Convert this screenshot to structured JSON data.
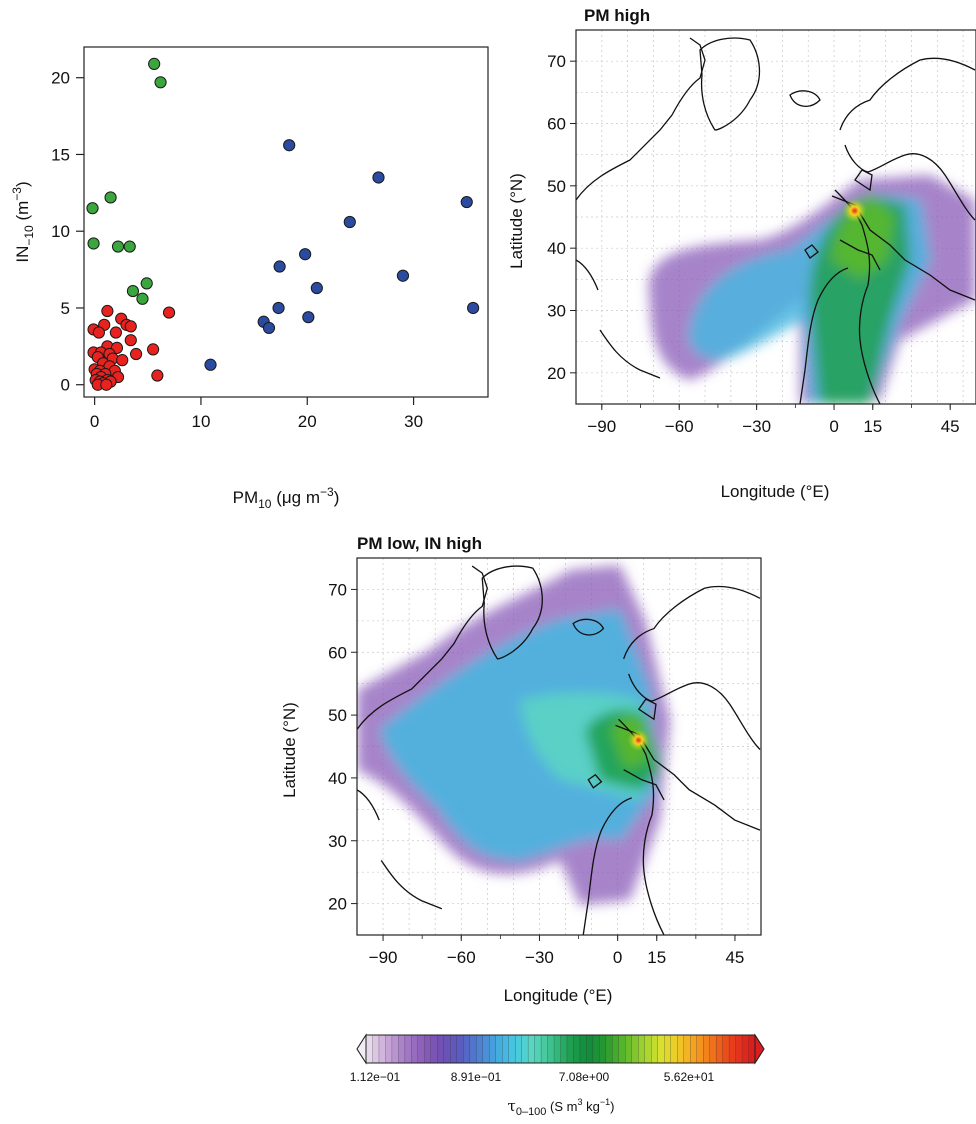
{
  "chart_data": [
    {
      "type": "scatter",
      "xlabel": "PM",
      "xlabel_sub": "10",
      "xlabel_unit": "(μg m",
      "xlabel_unit_sup": "−3",
      "xlabel_unit_end": ")",
      "ylabel": "IN",
      "ylabel_sub": "−10",
      "ylabel_unit": "(m",
      "ylabel_unit_sup": "−3",
      "ylabel_unit_end": ")",
      "xlim": [
        -1,
        37
      ],
      "ylim": [
        -0.8,
        22
      ],
      "xticks": [
        0,
        10,
        20,
        30
      ],
      "yticks": [
        0,
        5,
        10,
        15,
        20
      ],
      "colors": {
        "red": "#e8231f",
        "green": "#3aa63d",
        "blue": "#2a4ba0"
      },
      "series": [
        {
          "color": "#3aa63d",
          "points": [
            [
              5.6,
              20.9
            ],
            [
              6.2,
              19.7
            ],
            [
              -0.2,
              11.5
            ],
            [
              1.5,
              12.2
            ],
            [
              -0.1,
              9.2
            ],
            [
              2.2,
              9.0
            ],
            [
              3.3,
              9.0
            ],
            [
              4.9,
              6.6
            ],
            [
              3.6,
              6.1
            ],
            [
              4.5,
              5.6
            ]
          ]
        },
        {
          "color": "#2a4ba0",
          "points": [
            [
              18.3,
              15.6
            ],
            [
              26.7,
              13.5
            ],
            [
              35.0,
              11.9
            ],
            [
              24.0,
              10.6
            ],
            [
              19.8,
              8.5
            ],
            [
              17.4,
              7.7
            ],
            [
              29.0,
              7.1
            ],
            [
              20.9,
              6.3
            ],
            [
              17.3,
              5.0
            ],
            [
              35.6,
              5.0
            ],
            [
              20.1,
              4.4
            ],
            [
              15.9,
              4.1
            ],
            [
              16.4,
              3.7
            ],
            [
              10.9,
              1.3
            ]
          ]
        },
        {
          "color": "#e8231f",
          "points": [
            [
              1.2,
              4.8
            ],
            [
              7.0,
              4.7
            ],
            [
              2.5,
              4.3
            ],
            [
              0.9,
              3.9
            ],
            [
              3.0,
              3.9
            ],
            [
              3.4,
              3.8
            ],
            [
              -0.1,
              3.6
            ],
            [
              0.4,
              3.4
            ],
            [
              2.0,
              3.4
            ],
            [
              3.4,
              2.9
            ],
            [
              1.2,
              2.5
            ],
            [
              2.1,
              2.4
            ],
            [
              5.5,
              2.3
            ],
            [
              -0.1,
              2.1
            ],
            [
              0.6,
              2.1
            ],
            [
              1.4,
              2.0
            ],
            [
              3.9,
              2.0
            ],
            [
              0.3,
              1.8
            ],
            [
              1.7,
              1.7
            ],
            [
              2.6,
              1.6
            ],
            [
              0.8,
              1.4
            ],
            [
              1.4,
              1.2
            ],
            [
              0.0,
              1.0
            ],
            [
              0.5,
              0.9
            ],
            [
              1.9,
              0.9
            ],
            [
              0.2,
              0.7
            ],
            [
              1.0,
              0.7
            ],
            [
              5.9,
              0.6
            ],
            [
              0.6,
              0.5
            ],
            [
              2.2,
              0.5
            ],
            [
              0.1,
              0.3
            ],
            [
              1.2,
              0.3
            ],
            [
              0.5,
              0.2
            ],
            [
              1.5,
              0.2
            ],
            [
              0.8,
              0.1
            ],
            [
              0.3,
              0.0
            ],
            [
              1.1,
              0.0
            ]
          ]
        }
      ]
    },
    {
      "type": "heatmap",
      "title": "PM high",
      "title_color": "#2a4ba0",
      "xlabel": "Longitude (°E)",
      "ylabel": "Latitude (°N)",
      "xlim": [
        -100,
        55
      ],
      "ylim": [
        15,
        75
      ],
      "xticks": [
        -90,
        -60,
        -30,
        0,
        15,
        45
      ],
      "xtick_labels": [
        "−90",
        "−60",
        "−30",
        "0",
        "15",
        "45"
      ],
      "yticks": [
        20,
        30,
        40,
        50,
        60,
        70
      ],
      "source_marker": [
        8,
        46
      ]
    },
    {
      "type": "heatmap",
      "title": "PM low, IN high",
      "title_color": "#3aa63d",
      "xlabel": "Longitude (°E)",
      "ylabel": "Latitude (°N)",
      "xlim": [
        -100,
        55
      ],
      "ylim": [
        15,
        75
      ],
      "xticks": [
        -90,
        -60,
        -30,
        0,
        15,
        45
      ],
      "xtick_labels": [
        "−90",
        "−60",
        "−30",
        "0",
        "15",
        "45"
      ],
      "yticks": [
        20,
        30,
        40,
        50,
        60,
        70
      ],
      "source_marker": [
        8,
        46
      ]
    }
  ],
  "colorbar": {
    "tick_labels": [
      "1.12e−01",
      "8.91e−01",
      "7.08e+00",
      "5.62e+01"
    ],
    "label_symbol": "τ",
    "label_sub": "0–100",
    "label_unit": "(S m",
    "label_unit_sup": "3",
    "label_unit_mid": " kg",
    "label_unit_sup2": "−1",
    "label_unit_end": ")",
    "colors": [
      "#e6d9ea",
      "#c9a6d6",
      "#a37bc4",
      "#8a5cb8",
      "#7050b4",
      "#5a5cc0",
      "#4f7fd0",
      "#45a8e0",
      "#45c8e0",
      "#5ad8c0",
      "#3cc08c",
      "#1fa050",
      "#118a3c",
      "#2a9a30",
      "#5ab82a",
      "#9cd030",
      "#d8e030",
      "#f0c828",
      "#f59a1e",
      "#ef6a1a",
      "#e83a1c",
      "#d81e1e"
    ]
  }
}
